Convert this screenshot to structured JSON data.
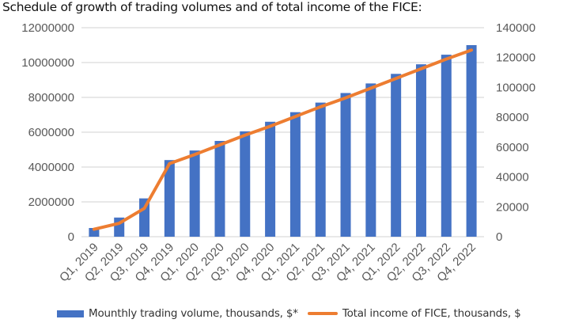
{
  "title": "Schedule of growth of trading volumes and of total income of the FICE:",
  "colors": {
    "bar": "#4472C4",
    "line": "#ED7D31",
    "grid": "#d9d9d9",
    "tick": "#595959"
  },
  "chart_data": {
    "type": "bar",
    "title": "Schedule of growth of trading volumes and of total income of the FICE:",
    "categories": [
      "Q1, 2019",
      "Q2, 2019",
      "Q3, 2019",
      "Q4, 2019",
      "Q1, 2020",
      "Q2, 2020",
      "Q3, 2020",
      "Q4, 2020",
      "Q1, 2021",
      "Q2, 2021",
      "Q3, 2021",
      "Q4, 2021",
      "Q1, 2022",
      "Q2, 2022",
      "Q3, 2022",
      "Q4, 2022"
    ],
    "series": [
      {
        "name": "Mounthly trading volume, thousands, $*",
        "type": "bar",
        "axis": "left",
        "values": [
          500000,
          1100000,
          2200000,
          4400000,
          4950000,
          5500000,
          6050000,
          6600000,
          7150000,
          7700000,
          8250000,
          8800000,
          9350000,
          9900000,
          10450000,
          11000000
        ]
      },
      {
        "name": "Total income of FICE, thousands, $",
        "type": "line",
        "axis": "right",
        "values": [
          5000,
          9000,
          19000,
          49000,
          55000,
          61500,
          68000,
          74000,
          80500,
          87000,
          93000,
          99500,
          106000,
          112500,
          119000,
          125000
        ]
      }
    ],
    "y_left": {
      "min": 0,
      "max": 12000000,
      "ticks": [
        "0",
        "2000000",
        "4000000",
        "6000000",
        "8000000",
        "10000000",
        "12000000"
      ]
    },
    "y_right": {
      "min": 0,
      "max": 140000,
      "ticks": [
        "0",
        "20000",
        "40000",
        "60000",
        "80000",
        "100000",
        "120000",
        "140000"
      ]
    },
    "grid": true,
    "legend_position": "bottom"
  }
}
